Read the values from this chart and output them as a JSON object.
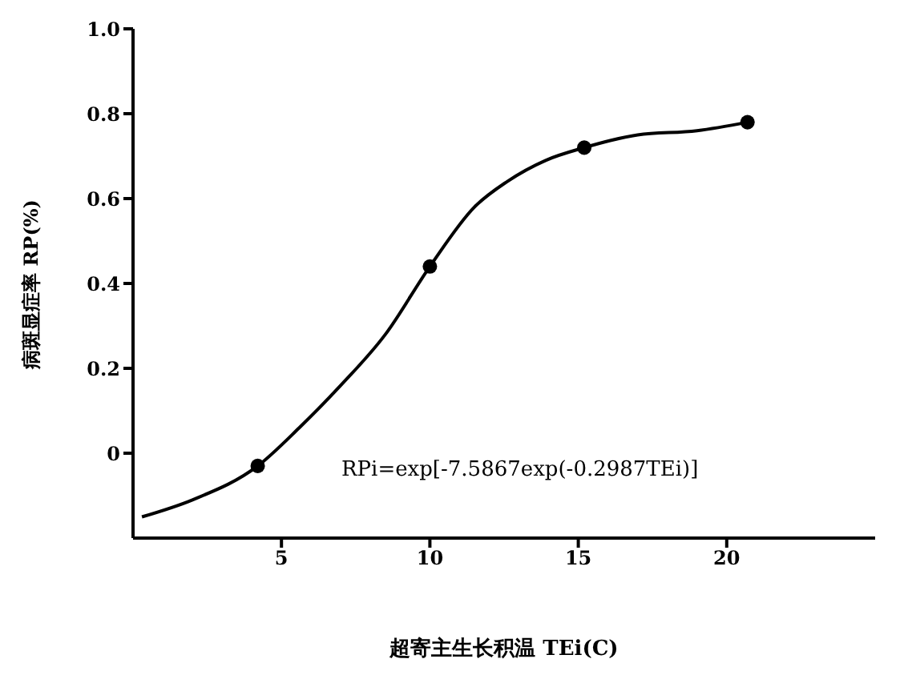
{
  "chart_data": {
    "type": "line",
    "xlabel": "超寄主生长积温 TEi(C)",
    "ylabel": "病斑显症率 RP(%)",
    "annotations": [
      "RPi=exp[-7.5867exp(-0.2987TEi)]"
    ],
    "series": [
      {
        "color": "#000000",
        "marker": "none",
        "x": [
          0.3,
          2,
          4.2,
          5.6,
          7,
          8.5,
          10,
          11.5,
          12.6,
          13.9,
          15.2,
          17,
          19,
          20.7
        ],
        "values": [
          -0.15,
          -0.11,
          -0.03,
          0.06,
          0.16,
          0.28,
          0.44,
          0.58,
          0.64,
          0.69,
          0.72,
          0.75,
          0.76,
          0.78
        ]
      },
      {
        "type": "scatter",
        "color": "#000000",
        "marker": "circle",
        "x": [
          4.2,
          10,
          15.2,
          20.7
        ],
        "values": [
          -0.03,
          0.44,
          0.72,
          0.78
        ]
      }
    ],
    "xlim": [
      0,
      25
    ],
    "xticks": [
      5,
      10,
      15,
      20
    ],
    "ylim": [
      -0.2,
      1.0
    ],
    "yticks": [
      0,
      0.2,
      0.4,
      0.6,
      0.8,
      {
        "value": 1.0,
        "label": "1.0"
      }
    ],
    "grid": false
  }
}
